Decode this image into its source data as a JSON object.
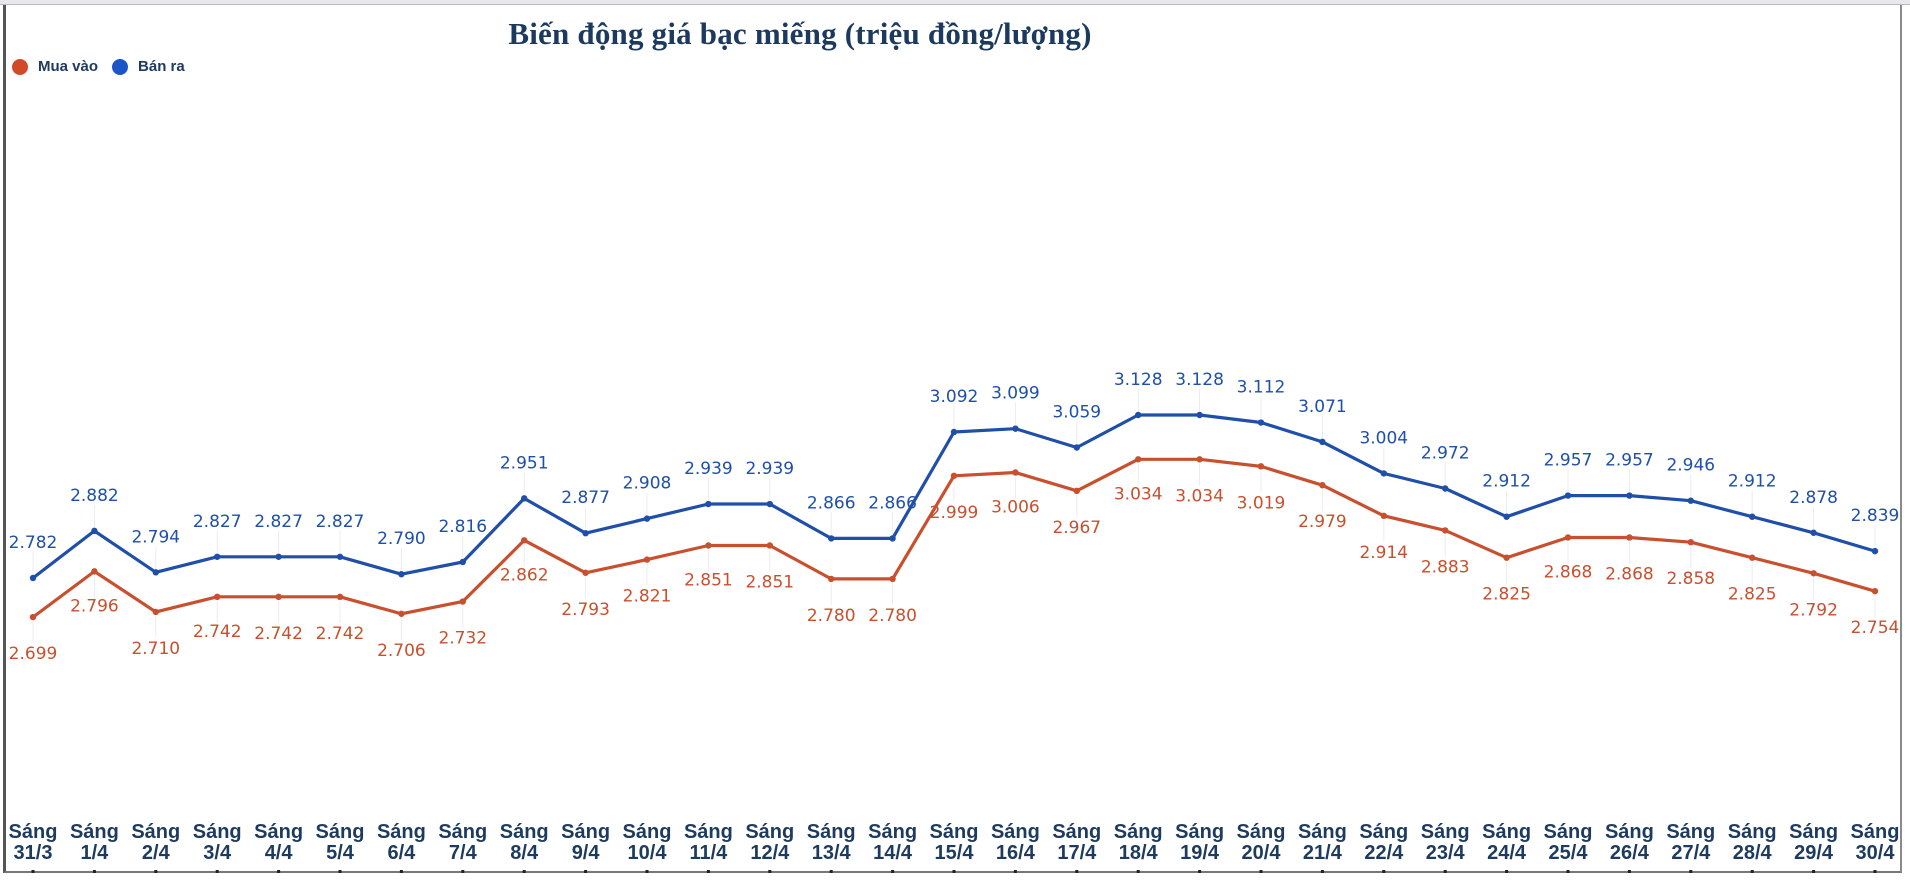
{
  "chart_data": {
    "type": "line",
    "title": "Biến động giá bạc miếng (triệu đồng/lượng)",
    "xlabel": "",
    "ylabel": "",
    "grid": false,
    "legend_position": "top-left",
    "categories": [
      "Sáng 31/3",
      "Sáng 1/4",
      "Sáng 2/4",
      "Sáng 3/4",
      "Sáng 4/4",
      "Sáng 5/4",
      "Sáng 6/4",
      "Sáng 7/4",
      "Sáng 8/4",
      "Sáng 9/4",
      "Sáng 10/4",
      "Sáng 11/4",
      "Sáng 12/4",
      "Sáng 13/4",
      "Sáng 14/4",
      "Sáng 15/4",
      "Sáng 16/4",
      "Sáng 17/4",
      "Sáng 18/4",
      "Sáng 19/4",
      "Sáng 20/4",
      "Sáng 21/4",
      "Sáng 22/4",
      "Sáng 23/4",
      "Sáng 24/4",
      "Sáng 25/4",
      "Sáng 26/4",
      "Sáng 27/4",
      "Sáng 28/4",
      "Sáng 29/4",
      "Sáng 30/4"
    ],
    "series": [
      {
        "name": "Mua vào",
        "color": "#c8502e",
        "label_position": "below",
        "values": [
          2.699,
          2.796,
          2.71,
          2.742,
          2.742,
          2.742,
          2.706,
          2.732,
          2.862,
          2.793,
          2.821,
          2.851,
          2.851,
          2.78,
          2.78,
          2.999,
          3.006,
          2.967,
          3.034,
          3.034,
          3.019,
          2.979,
          2.914,
          2.883,
          2.825,
          2.868,
          2.868,
          2.858,
          2.825,
          2.792,
          2.754
        ]
      },
      {
        "name": "Bán ra",
        "color": "#1f4fa8",
        "label_position": "above",
        "values": [
          2.782,
          2.882,
          2.794,
          2.827,
          2.827,
          2.827,
          2.79,
          2.816,
          2.951,
          2.877,
          2.908,
          2.939,
          2.939,
          2.866,
          2.866,
          3.092,
          3.099,
          3.059,
          3.128,
          3.128,
          3.112,
          3.071,
          3.004,
          2.972,
          2.912,
          2.957,
          2.957,
          2.946,
          2.912,
          2.878,
          2.839
        ]
      }
    ],
    "value_labels": {
      "Mua vào": [
        "2.699",
        "2.796",
        "2.710",
        "2.742",
        "2.742",
        "2.742",
        "2.706",
        "2.732",
        "2.862",
        "2.793",
        "2.821",
        "2.851",
        "2.851",
        "2.780",
        "2.780",
        "2.999",
        "3.006",
        "2.967",
        "3.034",
        "3.034",
        "3.019",
        "2.979",
        "2.914",
        "2.883",
        "2.825",
        "2.868",
        "2.868",
        "2.858",
        "2.825",
        "2.792",
        "2.754"
      ],
      "Bán ra": [
        "2.782",
        "2.882",
        "2.794",
        "2.827",
        "2.827",
        "2.827",
        "2.790",
        "2.816",
        "2.951",
        "2.877",
        "2.908",
        "2.939",
        "2.939",
        "2.866",
        "2.866",
        "3.092",
        "3.099",
        "3.059",
        "3.128",
        "3.128",
        "3.112",
        "3.071",
        "3.004",
        "2.972",
        "2.912",
        "2.957",
        "2.957",
        "2.946",
        "2.912",
        "2.878",
        "2.839"
      ]
    }
  },
  "legend": {
    "items": [
      {
        "label": "Mua vào",
        "color": "#d24a28"
      },
      {
        "label": "Bán ra",
        "color": "#1c55c8"
      }
    ]
  },
  "x_axis": {
    "line1": [
      "Sáng",
      "Sáng",
      "Sáng",
      "Sáng",
      "Sáng",
      "Sáng",
      "Sáng",
      "Sáng",
      "Sáng",
      "Sáng",
      "Sáng",
      "Sáng",
      "Sáng",
      "Sáng",
      "Sáng",
      "Sáng",
      "Sáng",
      "Sáng",
      "Sáng",
      "Sáng",
      "Sáng",
      "Sáng",
      "Sáng",
      "Sáng",
      "Sáng",
      "Sáng",
      "Sáng",
      "Sáng",
      "Sáng",
      "Sáng",
      "Sáng"
    ],
    "line2": [
      "31/3",
      "1/4",
      "2/4",
      "3/4",
      "4/4",
      "5/4",
      "6/4",
      "7/4",
      "8/4",
      "9/4",
      "10/4",
      "11/4",
      "12/4",
      "13/4",
      "14/4",
      "15/4",
      "16/4",
      "17/4",
      "18/4",
      "19/4",
      "20/4",
      "21/4",
      "22/4",
      "23/4",
      "24/4",
      "25/4",
      "26/4",
      "27/4",
      "28/4",
      "29/4",
      "30/4"
    ]
  }
}
